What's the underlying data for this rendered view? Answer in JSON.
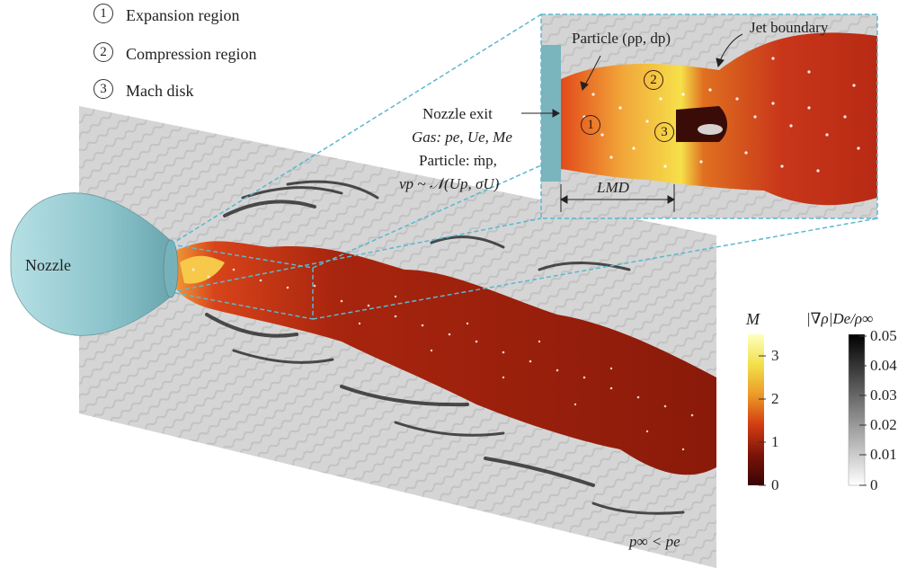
{
  "legend": [
    {
      "num": "1",
      "text": "Expansion region"
    },
    {
      "num": "2",
      "text": "Compression region"
    },
    {
      "num": "3",
      "text": "Mach disk"
    }
  ],
  "labels": {
    "nozzle": "Nozzle",
    "particle": "Particle (ρp, dp)",
    "jet_boundary": "Jet boundary",
    "nozzle_exit": "Nozzle exit",
    "gas": "Gas: pe, Ue, Me",
    "particle_rate": "Particle: ṁp,",
    "particle_velocity": "vp ~ 𝒩(Up, σU)",
    "l_md": "LMD",
    "pressure": "p∞ < pe"
  },
  "inset_markers": [
    "1",
    "2",
    "3"
  ],
  "colorbars": {
    "mach": {
      "title": "M",
      "ticks": [
        "3",
        "2",
        "1",
        "0"
      ],
      "colors": [
        "#ffffb0",
        "#f0e040",
        "#e88a20",
        "#cc3010",
        "#6a1008",
        "#3a0404"
      ]
    },
    "gradient": {
      "title": "|∇ρ|De/ρ∞",
      "ticks": [
        "0.05",
        "0.04",
        "0.03",
        "0.02",
        "0.01",
        "0"
      ],
      "colors": [
        "#000000",
        "#ffffff"
      ]
    }
  }
}
